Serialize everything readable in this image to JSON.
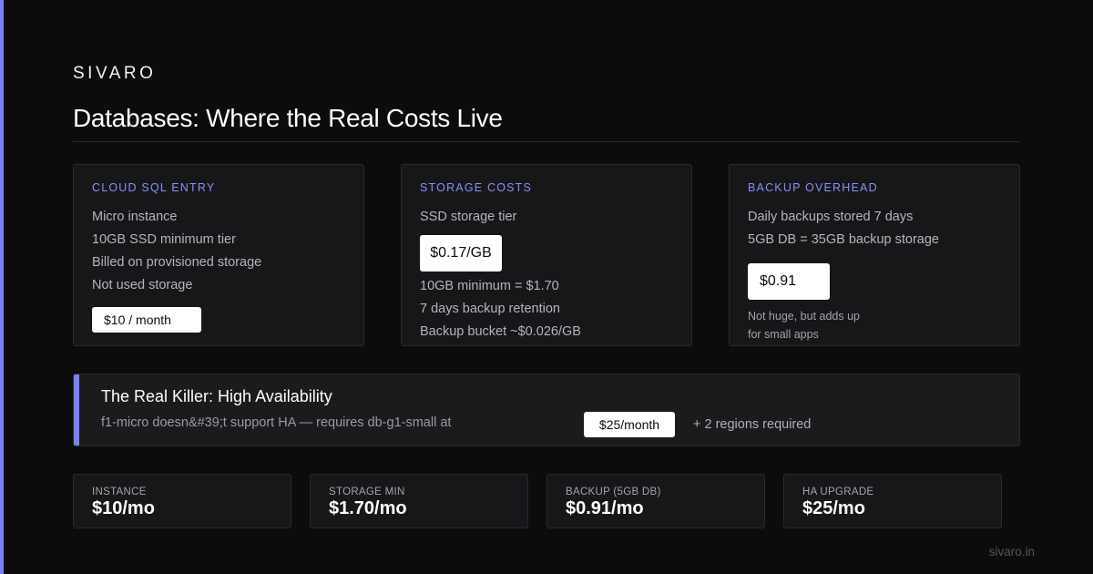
{
  "brand": "SIVARO",
  "title": "Databases: Where the Real Costs Live",
  "accent_color": "#7b80f5",
  "cards": [
    {
      "label": "CLOUD SQL ENTRY",
      "lines": [
        "Micro instance",
        "10GB SSD minimum tier",
        "Billed on provisioned storage",
        "Not used storage"
      ],
      "price": "$10 / month"
    },
    {
      "label": "STORAGE COSTS",
      "lines_before": [
        "SSD storage tier"
      ],
      "price": "$0.17/GB",
      "lines_after": [
        "10GB minimum = $1.70",
        "7 days backup retention",
        "Backup bucket ~$0.026/GB"
      ]
    },
    {
      "label": "BACKUP OVERHEAD",
      "lines": [
        "Daily backups stored 7 days",
        "5GB DB = 35GB backup storage"
      ],
      "price": "$0.91",
      "note": [
        "Not huge, but adds up",
        "for small apps"
      ]
    }
  ],
  "ha": {
    "title": "The Real Killer: High Availability",
    "subtitle": "f1-micro doesn&#39;t support HA — requires db-g1-small at",
    "price": "$25/month",
    "regions": "+ 2 regions required"
  },
  "stats": [
    {
      "label": "INSTANCE",
      "value": "$10/mo"
    },
    {
      "label": "STORAGE MIN",
      "value": "$1.70/mo"
    },
    {
      "label": "BACKUP (5GB DB)",
      "value": "$0.91/mo"
    },
    {
      "label": "HA UPGRADE",
      "value": "$25/mo"
    }
  ],
  "footer": "sivaro.in"
}
